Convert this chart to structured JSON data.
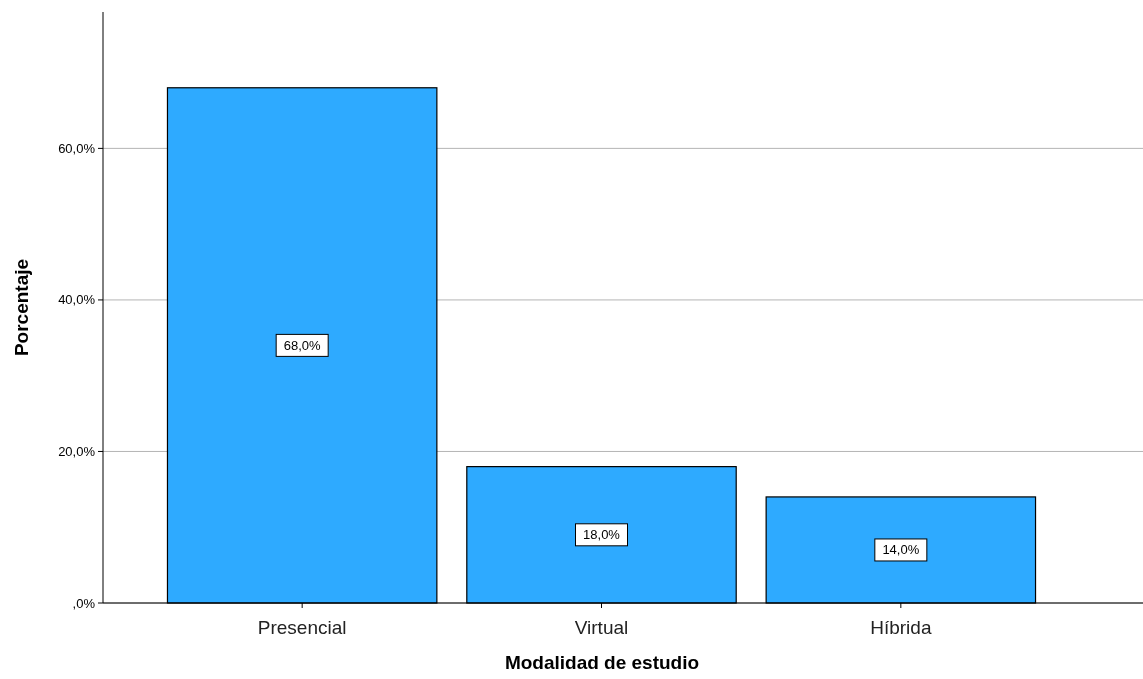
{
  "chart_data": {
    "type": "bar",
    "xlabel": "Modalidad de estudio",
    "ylabel": "Porcentaje",
    "categories": [
      "Presencial",
      "Virtual",
      "Híbrida"
    ],
    "values": [
      68.0,
      18.0,
      14.0
    ],
    "value_labels": [
      "68,0%",
      "18,0%",
      "14,0%"
    ],
    "color": "#2eaaff",
    "ylim": [
      0,
      78
    ],
    "yticks": [
      {
        "value": 0,
        "label": ",0%"
      },
      {
        "value": 20,
        "label": "20,0%"
      },
      {
        "value": 40,
        "label": "40,0%"
      },
      {
        "value": 60,
        "label": "60,0%"
      }
    ],
    "grid": "y"
  }
}
